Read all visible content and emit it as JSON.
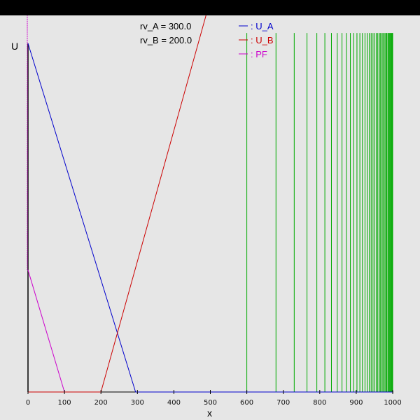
{
  "window": {
    "title_bar_color": "#000000",
    "background_color": "#e6e6e6"
  },
  "chart_data": {
    "type": "line",
    "xlabel": "x",
    "ylabel": "U",
    "xlim": [
      0,
      1000
    ],
    "x_ticks": [
      0,
      100,
      200,
      300,
      400,
      500,
      600,
      700,
      800,
      900,
      1000
    ],
    "parameters": [
      {
        "label": "rv_A = 300.0",
        "key": "rv_A",
        "value": 300.0
      },
      {
        "label": "rv_B = 200.0",
        "key": "rv_B",
        "value": 200.0
      }
    ],
    "series": [
      {
        "name": "U_A",
        "legend_label": ": U_A",
        "color": "#0000cc",
        "points": [
          [
            0,
            1.0
          ],
          [
            295,
            0.0
          ],
          [
            1000,
            0.0
          ]
        ]
      },
      {
        "name": "U_B",
        "legend_label": ": U_B",
        "color": "#cc0000",
        "points": [
          [
            0,
            0.0
          ],
          [
            200,
            0.0
          ],
          [
            520,
            1.2
          ]
        ]
      },
      {
        "name": "PF",
        "legend_label": ": PF",
        "color": "#cc00cc",
        "points": [
          [
            0,
            0.35
          ],
          [
            100,
            0.0
          ]
        ],
        "vertical_at_zero": [
          0.35,
          1.2
        ]
      }
    ],
    "green_lines": {
      "color": "#00aa00",
      "x_values": [
        600,
        680,
        730,
        765,
        792,
        814,
        832,
        848,
        861,
        873,
        884,
        893,
        902,
        910,
        917,
        924,
        930,
        936,
        941,
        946,
        951,
        955,
        959,
        963,
        966,
        970,
        973,
        976,
        979,
        982,
        984,
        987,
        989,
        991,
        993,
        995,
        997,
        999,
        1000
      ],
      "y_top": 1.05
    },
    "legend_position": "top-center",
    "grid": false
  }
}
